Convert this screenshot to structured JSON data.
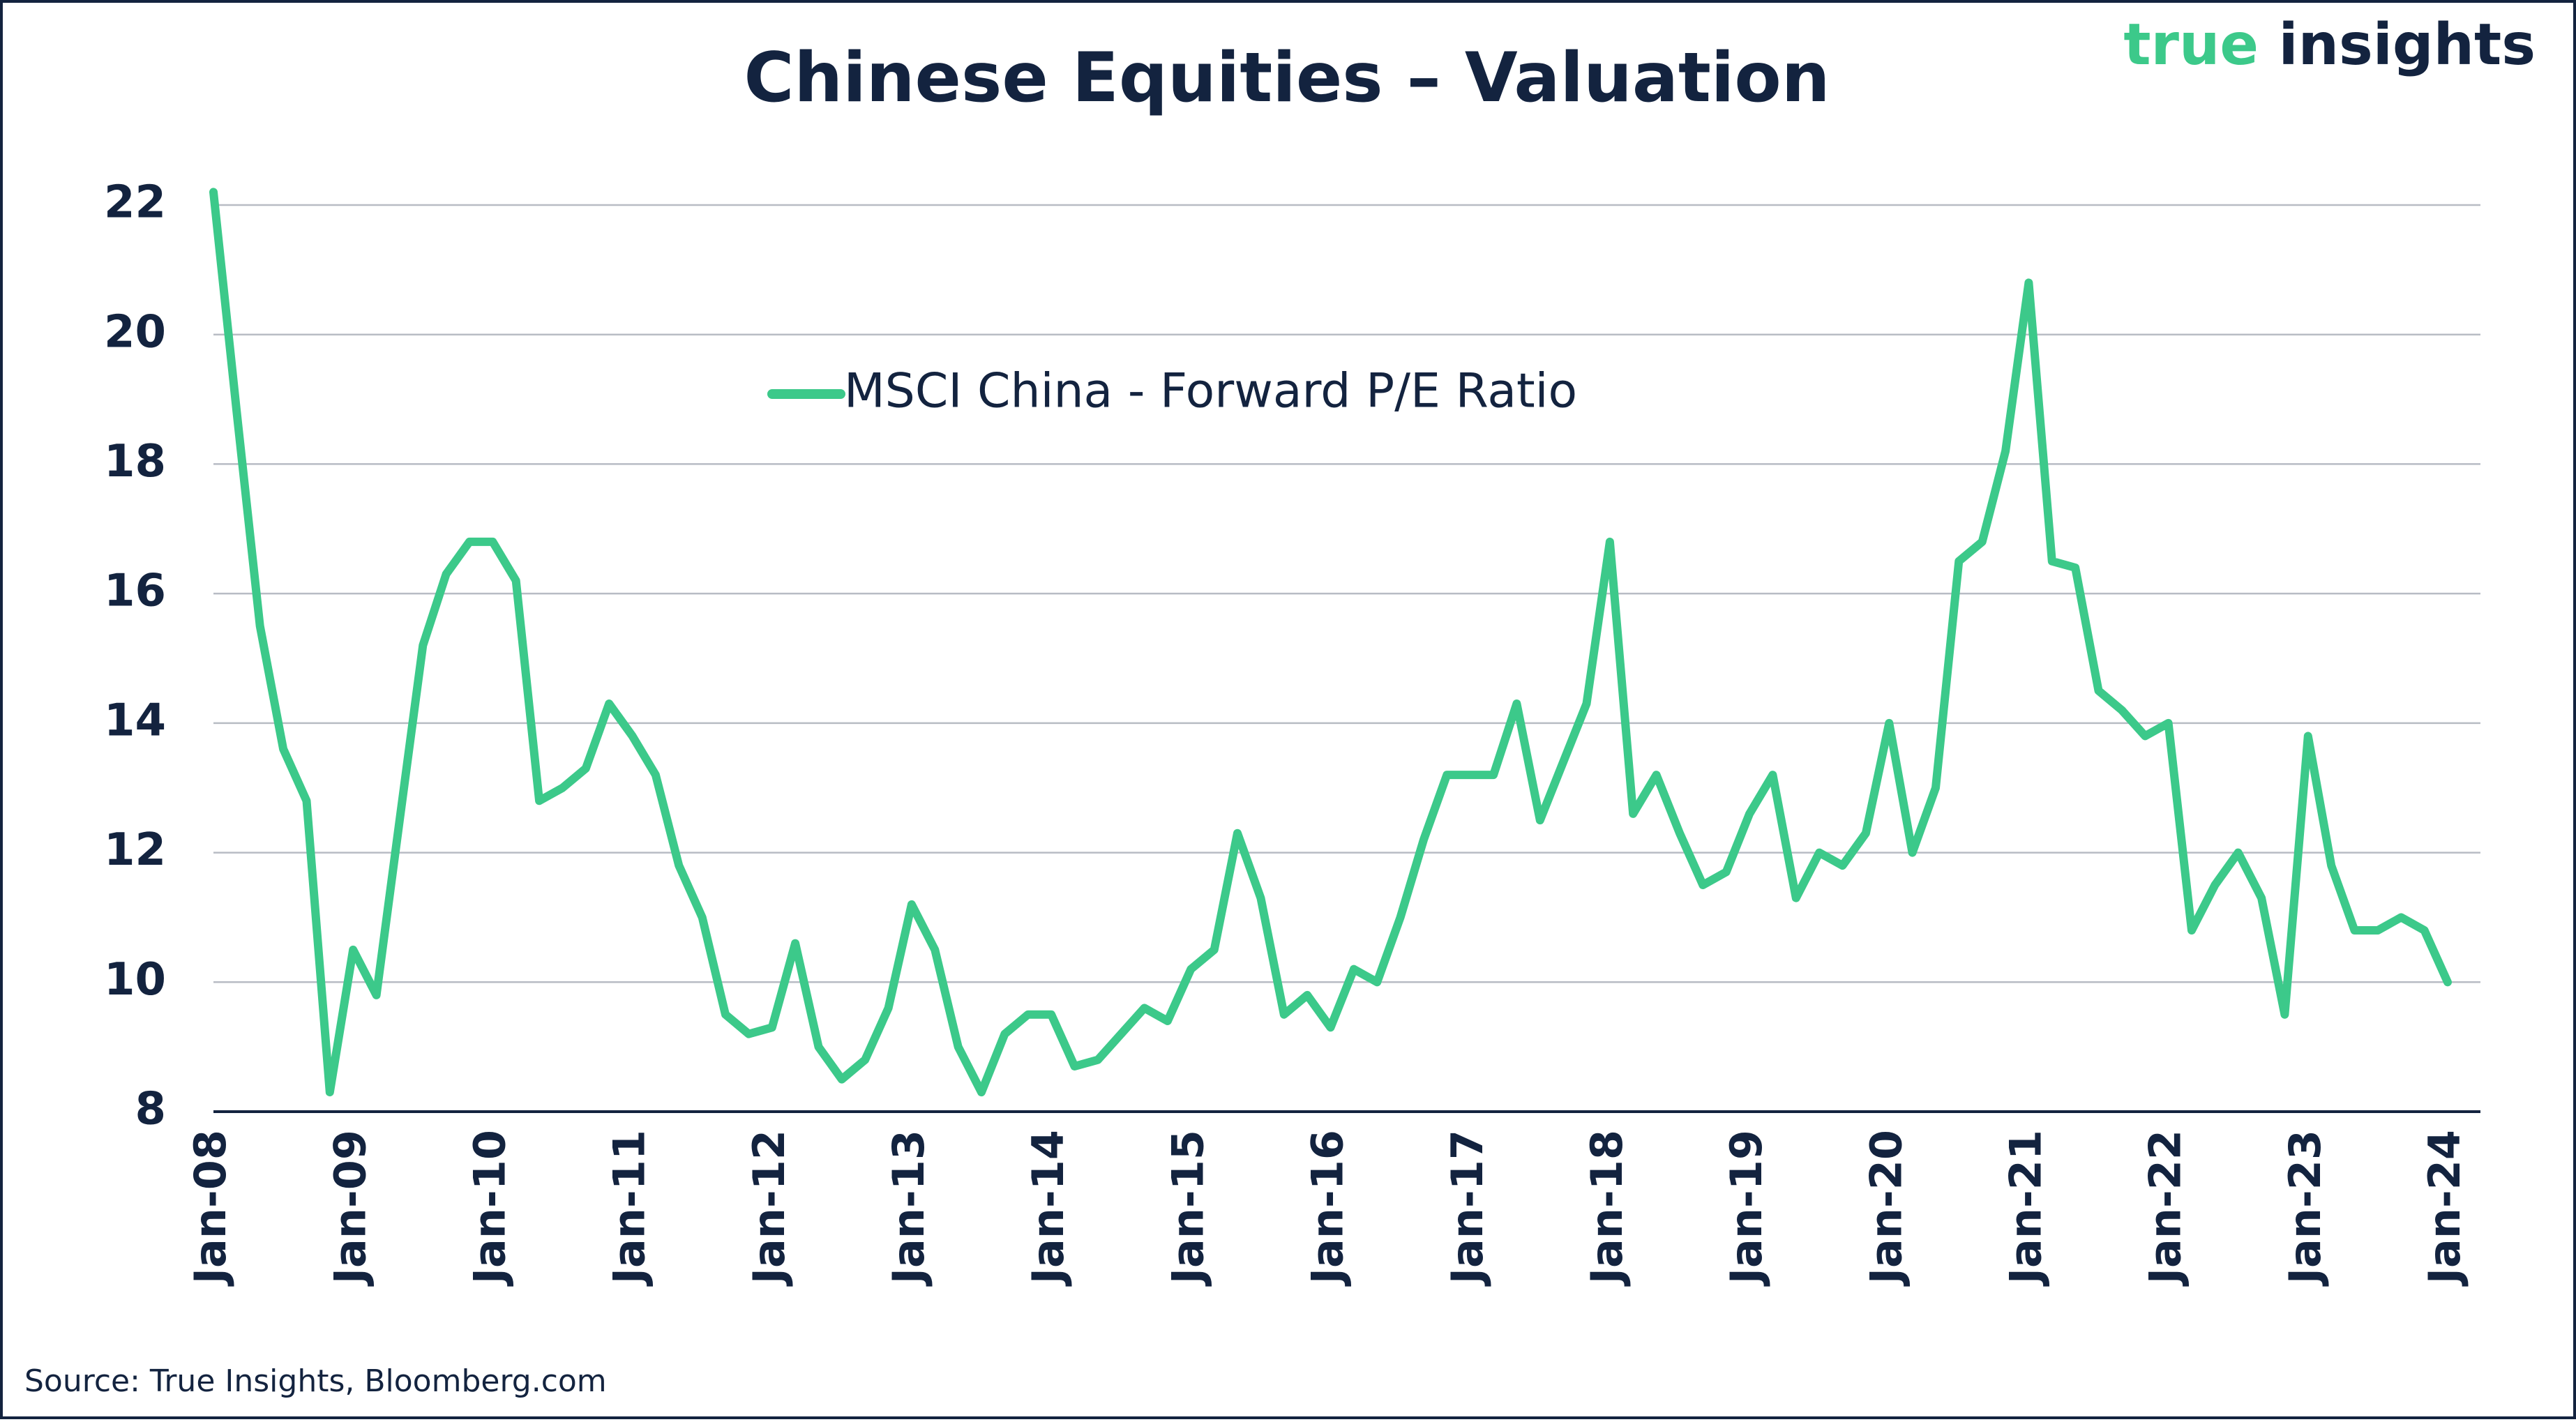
{
  "chart_data": {
    "type": "line",
    "title": "Chinese Equities – Valuation",
    "source": "Source: True Insights, Bloomberg.com",
    "brand": [
      "true",
      "insights"
    ],
    "categories": [
      "Jan-08",
      null,
      null,
      null,
      null,
      null,
      "Jan-09",
      null,
      null,
      null,
      null,
      null,
      "Jan-10",
      null,
      null,
      null,
      null,
      null,
      "Jan-11",
      null,
      null,
      null,
      null,
      null,
      "Jan-12",
      null,
      null,
      null,
      null,
      null,
      "Jan-13",
      null,
      null,
      null,
      null,
      null,
      "Jan-14",
      null,
      null,
      null,
      null,
      null,
      "Jan-15",
      null,
      null,
      null,
      null,
      null,
      "Jan-16",
      null,
      null,
      null,
      null,
      null,
      "Jan-17",
      null,
      null,
      null,
      null,
      null,
      "Jan-18",
      null,
      null,
      null,
      null,
      null,
      "Jan-19",
      null,
      null,
      null,
      null,
      null,
      "Jan-20",
      null,
      null,
      null,
      null,
      null,
      "Jan-21",
      null,
      null,
      null,
      null,
      null,
      "Jan-22",
      null,
      null,
      null,
      null,
      null,
      "Jan-23",
      null,
      null,
      null,
      null,
      null,
      "Jan-24"
    ],
    "series": [
      {
        "name": "MSCI China - Forward P/E Ratio",
        "color": "#3cc98a",
        "values": [
          22.2,
          18.8,
          15.5,
          13.6,
          12.8,
          8.3,
          10.5,
          9.8,
          12.5,
          15.2,
          16.3,
          16.8,
          16.8,
          16.2,
          12.8,
          13.0,
          13.3,
          14.3,
          13.8,
          13.2,
          11.8,
          11.0,
          9.5,
          9.2,
          9.3,
          10.6,
          9.0,
          8.5,
          8.8,
          9.6,
          11.2,
          10.5,
          9.0,
          8.3,
          9.2,
          9.5,
          9.5,
          8.7,
          8.8,
          9.2,
          9.6,
          9.4,
          10.2,
          10.5,
          12.3,
          11.3,
          9.5,
          9.8,
          9.3,
          10.2,
          10.0,
          11.0,
          12.2,
          13.2,
          13.2,
          13.2,
          14.3,
          12.5,
          13.4,
          14.3,
          16.8,
          12.6,
          13.2,
          12.3,
          11.5,
          11.7,
          12.6,
          13.2,
          11.3,
          12.0,
          11.8,
          12.3,
          14.0,
          12.0,
          13.0,
          16.5,
          16.8,
          18.2,
          20.8,
          16.5,
          16.4,
          14.5,
          14.2,
          13.8,
          14.0,
          10.8,
          11.5,
          12.0,
          11.3,
          9.5,
          13.8,
          11.8,
          10.8,
          10.8,
          11.0,
          10.8,
          10.0
        ]
      }
    ],
    "ylim": [
      8,
      22
    ],
    "yticks": [
      8,
      10,
      12,
      14,
      16,
      18,
      20,
      22
    ],
    "grid": true
  }
}
